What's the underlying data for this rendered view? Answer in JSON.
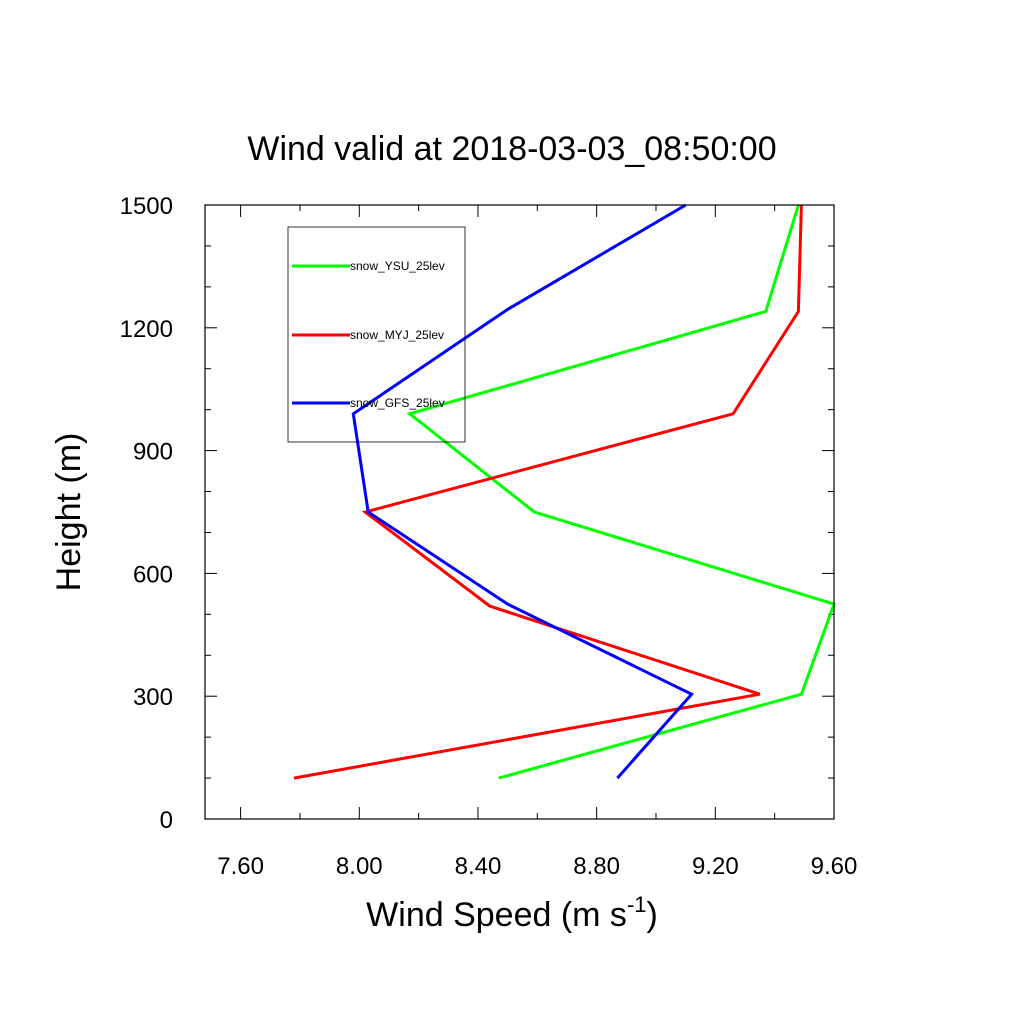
{
  "chart_data": {
    "type": "line",
    "title": "Wind valid at 2018-03-03_08:50:00",
    "xlabel_main": "Wind Speed (m s",
    "xlabel_sup": "-1",
    "xlabel_close": ")",
    "ylabel": "Height (m)",
    "xlim": [
      7.48,
      9.6
    ],
    "ylim": [
      0,
      1500
    ],
    "x_ticks": [
      "7.60",
      "8.00",
      "8.40",
      "8.80",
      "9.20",
      "9.60"
    ],
    "y_ticks": [
      "0",
      "300",
      "600",
      "900",
      "1200",
      "1500"
    ],
    "legend_position": "upper-left",
    "series": [
      {
        "name": "snow_YSU_25lev",
        "color": "#00ff00",
        "points": [
          [
            8.47,
            100
          ],
          [
            9.49,
            305
          ],
          [
            9.6,
            525
          ],
          [
            8.59,
            750
          ],
          [
            8.17,
            990
          ],
          [
            9.37,
            1240
          ],
          [
            9.48,
            1500
          ]
        ]
      },
      {
        "name": "snow_MYJ_25lev",
        "color": "#ff0000",
        "points": [
          [
            7.78,
            100
          ],
          [
            9.35,
            305
          ],
          [
            8.44,
            520
          ],
          [
            8.02,
            750
          ],
          [
            9.26,
            990
          ],
          [
            9.48,
            1240
          ],
          [
            9.49,
            1500
          ]
        ]
      },
      {
        "name": "snow_GFS_25lev",
        "color": "#0000ff",
        "points": [
          [
            8.87,
            100
          ],
          [
            9.12,
            305
          ],
          [
            8.5,
            525
          ],
          [
            8.03,
            750
          ],
          [
            7.98,
            990
          ],
          [
            8.5,
            1245
          ],
          [
            9.1,
            1500
          ]
        ]
      }
    ]
  }
}
